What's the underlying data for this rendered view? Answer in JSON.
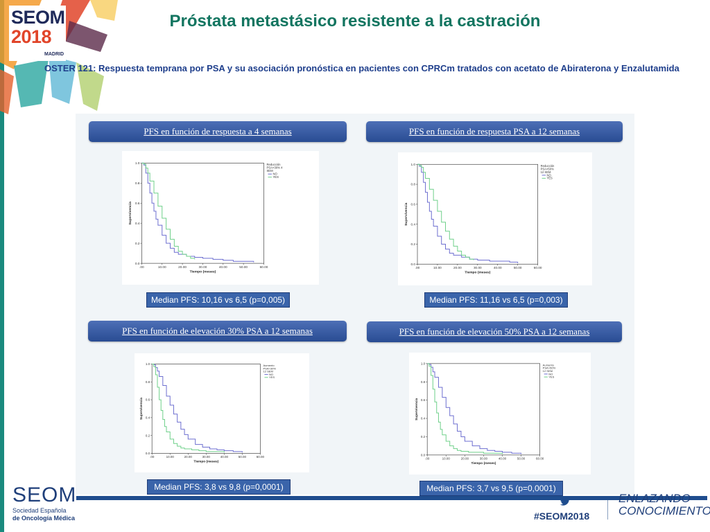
{
  "header": {
    "title": "Próstata metastásico resistente a la castración",
    "subtitle": "OSTER 121: Respuesta temprana por PSA y su asociación pronóstica en pacientes con CPRCm tratados con acetato de Abiraterona y Enzalutamida"
  },
  "logo": {
    "line1": "SEOM",
    "line2": "2018",
    "line3": "MADRID"
  },
  "footer": {
    "org_name": "SEOM",
    "org_sub1": "Sociedad Española",
    "org_sub2": "de Oncología Médica",
    "hashtag": "#SEOM2018",
    "slogan_line1": "ENLAZANDO",
    "slogan_line2": "CONOCIMIENTO"
  },
  "colors": {
    "series_no": "#6d6fd0",
    "series_yes": "#6fd08a",
    "accent": "#294c93",
    "title": "#137560"
  },
  "panels": [
    {
      "title": "PFS en función de respuesta a 4 semanas",
      "median": "Median PFS: 10,16 vs 6,5 (p=0,005)"
    },
    {
      "title": "PFS en función de respuesta PSA a 12 semanas",
      "median": "Median PFS: 11,16 vs 6,5 (p=0,003)"
    },
    {
      "title": "PFS en función de elevación 30% PSA a 12 semanas",
      "median": "Median PFS: 3,8 vs 9,8 (p=0,0001)"
    },
    {
      "title": "PFS en función de elevación 50% PSA a 12 semanas",
      "median": "Median PFS: 3,7 vs 9,5 (p=0,0001)"
    }
  ],
  "chart_data": [
    {
      "type": "line",
      "xlabel": "Tiempo (meses)",
      "ylabel": "Supervivencia",
      "xticks": [
        ".00",
        "10.00",
        "20.00",
        "30.00",
        "40.00",
        "50.00",
        "60.00"
      ],
      "yticks": [
        "0.0",
        "0.2",
        "0.4",
        "0.6",
        "0.8",
        "1.0"
      ],
      "xlim": [
        0,
        60
      ],
      "ylim": [
        0,
        1
      ],
      "legend_title": [
        "Reducción",
        "PSA>30% 4",
        "SEM"
      ],
      "series": [
        {
          "name": "NO",
          "x": [
            0,
            1,
            2,
            3,
            4,
            5,
            6,
            7,
            8,
            10,
            12,
            14,
            16,
            18,
            22,
            26,
            30,
            35,
            40,
            45,
            50,
            55
          ],
          "y": [
            1.0,
            0.98,
            0.9,
            0.8,
            0.7,
            0.6,
            0.52,
            0.44,
            0.38,
            0.28,
            0.2,
            0.15,
            0.11,
            0.09,
            0.07,
            0.06,
            0.05,
            0.04,
            0.03,
            0.02,
            0.02,
            0.01
          ]
        },
        {
          "name": "YES",
          "x": [
            0,
            1,
            2,
            3,
            4,
            6,
            8,
            10,
            12,
            14,
            16,
            18,
            20,
            22,
            24,
            26
          ],
          "y": [
            1.0,
            0.99,
            0.95,
            0.9,
            0.82,
            0.7,
            0.57,
            0.45,
            0.34,
            0.24,
            0.17,
            0.12,
            0.09,
            0.07,
            0.05,
            0.04
          ]
        }
      ]
    },
    {
      "type": "line",
      "xlabel": "Tiempo (meses)",
      "ylabel": "Supervivencia",
      "xticks": [
        ".00",
        "10.00",
        "20.00",
        "30.00",
        "40.00",
        "50.00",
        "60.00"
      ],
      "yticks": [
        "0.0",
        "0.2",
        "0.4",
        "0.6",
        "0.8",
        "1.0"
      ],
      "xlim": [
        0,
        60
      ],
      "ylim": [
        0,
        1
      ],
      "legend_title": [
        "Reducción",
        "PSA>50%",
        "12 SEM"
      ],
      "series": [
        {
          "name": "NO",
          "x": [
            0,
            1,
            2,
            3,
            4,
            5,
            6,
            7,
            8,
            10,
            12,
            14,
            16,
            18,
            22,
            26,
            30,
            36,
            40,
            46,
            50
          ],
          "y": [
            1.0,
            0.98,
            0.92,
            0.82,
            0.72,
            0.62,
            0.53,
            0.45,
            0.38,
            0.28,
            0.2,
            0.15,
            0.11,
            0.09,
            0.07,
            0.05,
            0.04,
            0.03,
            0.03,
            0.02,
            0.01
          ]
        },
        {
          "name": "YES",
          "x": [
            0,
            1,
            2,
            3,
            4,
            6,
            8,
            10,
            12,
            14,
            16,
            18,
            20,
            22,
            24,
            26,
            28
          ],
          "y": [
            1.0,
            0.99,
            0.97,
            0.92,
            0.86,
            0.75,
            0.64,
            0.53,
            0.42,
            0.33,
            0.25,
            0.18,
            0.13,
            0.09,
            0.07,
            0.05,
            0.04
          ]
        }
      ]
    },
    {
      "type": "line",
      "xlabel": "Tiempo (meses)",
      "ylabel": "Supervivencia",
      "xticks": [
        ".00",
        "10.00",
        "20.00",
        "30.00",
        "40.00",
        "50.00",
        "60.00"
      ],
      "yticks": [
        "0.0",
        "0.2",
        "0.4",
        "0.6",
        "0.8",
        "1.0"
      ],
      "xlim": [
        0,
        60
      ],
      "ylim": [
        0,
        1
      ],
      "legend_title": [
        "Aumento",
        "PSA>30%",
        "12 SEM"
      ],
      "series": [
        {
          "name": "NO",
          "x": [
            0,
            1,
            2,
            3,
            4,
            6,
            8,
            10,
            12,
            14,
            16,
            18,
            20,
            24,
            28,
            32,
            36,
            40,
            45,
            50
          ],
          "y": [
            1.0,
            0.99,
            0.96,
            0.92,
            0.86,
            0.76,
            0.64,
            0.54,
            0.44,
            0.35,
            0.27,
            0.21,
            0.16,
            0.1,
            0.07,
            0.05,
            0.04,
            0.03,
            0.02,
            0.01
          ]
        },
        {
          "name": "YES",
          "x": [
            0,
            1,
            2,
            3,
            4,
            5,
            6,
            7,
            8,
            10,
            12,
            14,
            16,
            18,
            22,
            26,
            30,
            35,
            40
          ],
          "y": [
            1.0,
            0.97,
            0.88,
            0.74,
            0.6,
            0.48,
            0.38,
            0.3,
            0.24,
            0.16,
            0.11,
            0.08,
            0.06,
            0.05,
            0.04,
            0.03,
            0.02,
            0.02,
            0.01
          ]
        }
      ]
    },
    {
      "type": "line",
      "xlabel": "Tiempo (meses)",
      "ylabel": "Supervivencia",
      "xticks": [
        ".00",
        "10.00",
        "20.00",
        "30.00",
        "40.00",
        "50.00",
        "60.00"
      ],
      "yticks": [
        "0.0",
        "0.2",
        "0.4",
        "0.6",
        "0.8",
        "1.0"
      ],
      "xlim": [
        0,
        60
      ],
      "ylim": [
        0,
        1
      ],
      "legend_title": [
        "Aumento",
        "PSA>50%",
        "12 SEM"
      ],
      "series": [
        {
          "name": "NO",
          "x": [
            0,
            1,
            2,
            3,
            4,
            6,
            8,
            10,
            12,
            14,
            16,
            18,
            20,
            24,
            28,
            32,
            36,
            40,
            45,
            50
          ],
          "y": [
            1.0,
            0.99,
            0.96,
            0.91,
            0.85,
            0.74,
            0.63,
            0.52,
            0.43,
            0.34,
            0.26,
            0.2,
            0.15,
            0.1,
            0.07,
            0.05,
            0.04,
            0.03,
            0.02,
            0.01
          ]
        },
        {
          "name": "YES",
          "x": [
            0,
            1,
            2,
            3,
            4,
            5,
            6,
            7,
            8,
            10,
            12,
            14,
            16,
            18,
            22,
            26,
            30,
            35,
            40
          ],
          "y": [
            1.0,
            0.97,
            0.87,
            0.72,
            0.58,
            0.46,
            0.36,
            0.28,
            0.22,
            0.15,
            0.1,
            0.07,
            0.05,
            0.04,
            0.03,
            0.03,
            0.02,
            0.02,
            0.01
          ]
        }
      ]
    }
  ]
}
